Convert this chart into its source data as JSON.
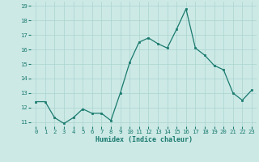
{
  "x": [
    0,
    1,
    2,
    3,
    4,
    5,
    6,
    7,
    8,
    9,
    10,
    11,
    12,
    13,
    14,
    15,
    16,
    17,
    18,
    19,
    20,
    21,
    22,
    23
  ],
  "y": [
    12.4,
    12.4,
    11.3,
    10.9,
    11.3,
    11.9,
    11.6,
    11.6,
    11.1,
    13.0,
    15.1,
    16.5,
    16.8,
    16.4,
    16.1,
    17.4,
    18.8,
    16.1,
    15.6,
    14.9,
    14.6,
    13.0,
    12.5,
    13.2
  ],
  "xlabel": "Humidex (Indice chaleur)",
  "ylim_min": 10.7,
  "ylim_max": 19.3,
  "xlim_min": -0.5,
  "xlim_max": 23.5,
  "yticks": [
    11,
    12,
    13,
    14,
    15,
    16,
    17,
    18,
    19
  ],
  "xticks": [
    0,
    1,
    2,
    3,
    4,
    5,
    6,
    7,
    8,
    9,
    10,
    11,
    12,
    13,
    14,
    15,
    16,
    17,
    18,
    19,
    20,
    21,
    22,
    23
  ],
  "line_color": "#1a7a6e",
  "marker_color": "#1a7a6e",
  "bg_color": "#cce9e6",
  "grid_color": "#aad4d0",
  "label_color": "#1a7a6e",
  "tick_color": "#1a7a6e",
  "xlabel_fontsize": 6.0,
  "tick_fontsize": 5.2
}
